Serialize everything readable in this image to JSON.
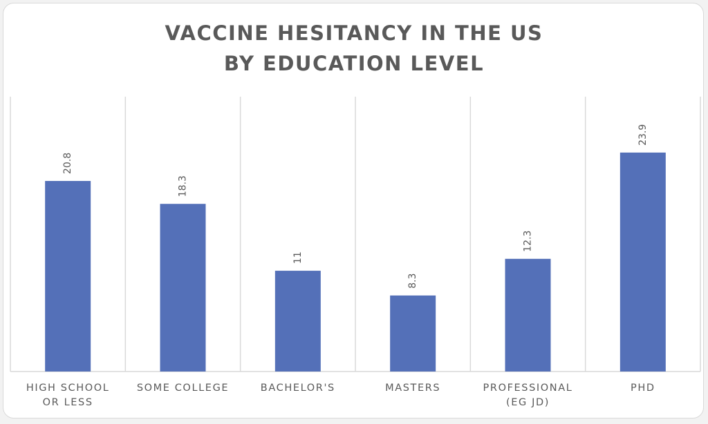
{
  "chart_data": {
    "type": "bar",
    "title_lines": [
      "VACCINE HESITANCY IN THE US",
      "BY EDUCATION LEVEL"
    ],
    "categories": [
      [
        "HIGH SCHOOL",
        "OR LESS"
      ],
      [
        "SOME COLLEGE"
      ],
      [
        "BACHELOR'S"
      ],
      [
        "MASTERS"
      ],
      [
        "PROFESSIONAL",
        "(EG JD)"
      ],
      [
        "PHD"
      ]
    ],
    "values": [
      20.8,
      18.3,
      11,
      8.3,
      12.3,
      23.9
    ],
    "value_labels": [
      "20.8",
      "18.3",
      "11",
      "8.3",
      "12.3",
      "23.9"
    ],
    "ylim": [
      0,
      30
    ],
    "xlabel": "",
    "ylabel": "",
    "grid": "vertical separators",
    "legend": "none",
    "colors": {
      "bar": "#5470b8",
      "text": "#595959",
      "grid": "#d9d9d9"
    }
  }
}
